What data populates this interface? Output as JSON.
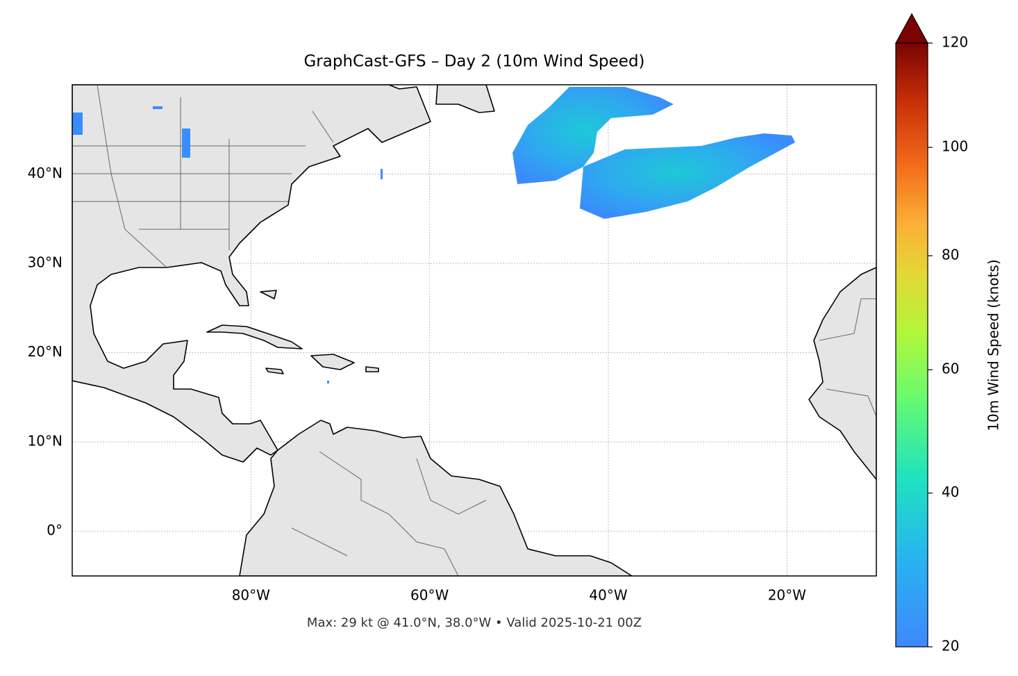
{
  "map": {
    "title": "GraphCast-GFS – Day 2 (10m Wind Speed)",
    "footer": "Max: 29 kt @ 41.0°N, 38.0°W • Valid 2025-10-21 00Z",
    "lon_lim": [
      -100,
      -10
    ],
    "lat_lim": [
      -5,
      50
    ],
    "lon_ticks": [
      {
        "value": -80,
        "label": "80°W"
      },
      {
        "value": -60,
        "label": "60°W"
      },
      {
        "value": -40,
        "label": "40°W"
      },
      {
        "value": -20,
        "label": "20°W"
      }
    ],
    "lat_ticks": [
      {
        "value": 0,
        "label": "0°"
      },
      {
        "value": 10,
        "label": "10°N"
      },
      {
        "value": 20,
        "label": "20°N"
      },
      {
        "value": 30,
        "label": "30°N"
      },
      {
        "value": 40,
        "label": "40°N"
      }
    ],
    "grid": true,
    "colorbar": {
      "label": "10m Wind Speed (knots)",
      "lim": [
        20,
        120
      ],
      "ticks": [
        20,
        40,
        60,
        80,
        100,
        120
      ],
      "norm_gamma": 0.85
    }
  }
}
